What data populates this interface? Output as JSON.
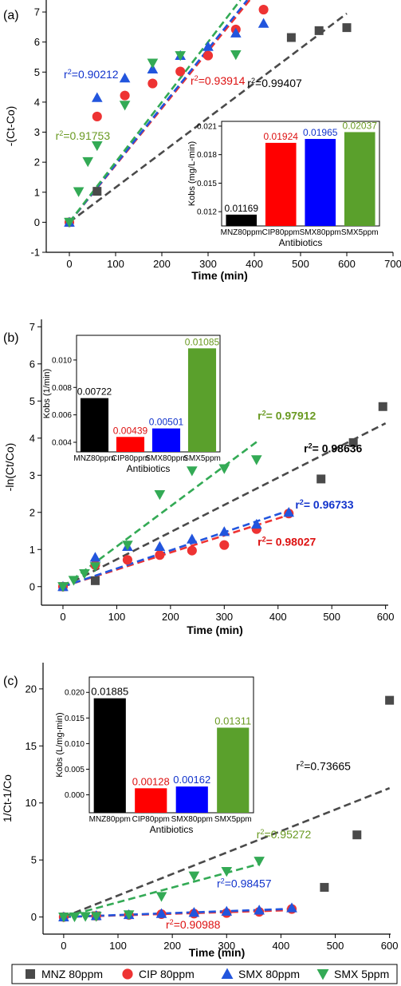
{
  "colors": {
    "MNZ": "#4a4a4a",
    "CIP": "#ee3333",
    "SMX80": "#2255dd",
    "SMX5": "#33aa55",
    "barMNZ": "#000000",
    "barCIP": "#ff0000",
    "barSMX80": "#0000ff",
    "barSMX5": "#5aa02c",
    "txtMNZ": "#000000",
    "txtCIP": "#dd1111",
    "txtSMX80": "#1133cc",
    "txtSMX5": "#6a9a22"
  },
  "legend": {
    "placement": "bottom",
    "items": [
      {
        "key": "MNZ",
        "label": "MNZ 80ppm",
        "marker": "square"
      },
      {
        "key": "CIP",
        "label": "CIP 80ppm",
        "marker": "circle"
      },
      {
        "key": "SMX80",
        "label": "SMX 80ppm",
        "marker": "triangle-up"
      },
      {
        "key": "SMX5",
        "label": "SMX 5ppm",
        "marker": "triangle-down"
      }
    ]
  },
  "chart_data": [
    {
      "type": "scatter",
      "panel_label": "(a)",
      "title": "",
      "xlabel": "Time (min)",
      "ylabel": "-(Ct-Co)",
      "xlim": [
        -50,
        700
      ],
      "ylim": [
        -1,
        7.4
      ],
      "xticks": [
        0,
        100,
        200,
        300,
        400,
        500,
        600,
        700
      ],
      "yticks": [
        -1,
        0,
        1,
        2,
        3,
        4,
        5,
        6,
        7
      ],
      "xticklabels": [
        "0",
        "100",
        "200",
        "300",
        "400",
        "500",
        "600",
        "700"
      ],
      "yticklabels": [
        "-1",
        "0",
        "1",
        "2",
        "3",
        "4",
        "5",
        "6",
        "7"
      ],
      "series": [
        {
          "key": "MNZ",
          "marker": "square",
          "x": [
            0,
            60,
            480,
            540,
            600
          ],
          "y": [
            0,
            1.03,
            6.15,
            6.38,
            6.48
          ],
          "fit": [
            [
              0,
              0
            ],
            [
              600,
              6.95
            ]
          ]
        },
        {
          "key": "CIP",
          "marker": "circle",
          "x": [
            0,
            60,
            120,
            180,
            240,
            300,
            360,
            420
          ],
          "y": [
            0,
            3.52,
            4.22,
            4.62,
            5.02,
            5.55,
            6.42,
            7.08
          ],
          "fit": [
            [
              0,
              0
            ],
            [
              390,
              7.4
            ]
          ]
        },
        {
          "key": "SMX80",
          "marker": "triangle-up",
          "x": [
            0,
            60,
            120,
            180,
            240,
            300,
            360,
            420
          ],
          "y": [
            0,
            4.15,
            4.8,
            5.1,
            5.55,
            5.85,
            6.3,
            6.62
          ],
          "fit": [
            [
              0,
              0
            ],
            [
              385,
              7.4
            ]
          ]
        },
        {
          "key": "SMX5",
          "marker": "triangle-down",
          "x": [
            0,
            20,
            40,
            60,
            120,
            180,
            240,
            360
          ],
          "y": [
            0,
            1.02,
            2.02,
            2.55,
            3.9,
            5.3,
            5.55,
            5.58
          ],
          "fit": [
            [
              0,
              0
            ],
            [
              370,
              7.4
            ]
          ]
        }
      ],
      "annotations": [
        {
          "key": "SMX80",
          "text": "r²=0.90212",
          "x": -12,
          "y": 4.8
        },
        {
          "key": "CIP",
          "text": "r²=0.93914",
          "x": 262,
          "y": 4.58
        },
        {
          "key": "MNZ",
          "text": "r²=0.99407",
          "x": 385,
          "y": 4.5
        },
        {
          "key": "SMX5",
          "text": "r²=0.91753",
          "x": -30,
          "y": 2.75
        }
      ],
      "inset": {
        "type": "bar",
        "xlabel": "Antibiotics",
        "ylabel": "Kobs (mg/L-min)",
        "ylim": [
          0.0105,
          0.0215
        ],
        "yticks": [
          0.012,
          0.015,
          0.018,
          0.021
        ],
        "yticklabels": [
          "0.012",
          "0.015",
          "0.018",
          "0.021"
        ],
        "categories": [
          "MNZ80ppm",
          "CIP80ppm",
          "SMX80ppm",
          "SMX5ppm"
        ],
        "values": [
          0.01169,
          0.01924,
          0.01965,
          0.02037
        ],
        "value_labels": [
          "0.01169",
          "0.01924",
          "0.01965",
          "0.02037"
        ]
      }
    },
    {
      "type": "scatter",
      "panel_label": "(b)",
      "title": "",
      "xlabel": "Time (min)",
      "ylabel": "-ln(Ct/Co)",
      "xlim": [
        -40,
        605
      ],
      "ylim": [
        -0.5,
        7.2
      ],
      "xticks": [
        0,
        100,
        200,
        300,
        400,
        500,
        600
      ],
      "yticks": [
        0,
        1,
        2,
        3,
        4,
        5,
        6,
        7
      ],
      "xticklabels": [
        "0",
        "100",
        "200",
        "300",
        "400",
        "500",
        "600"
      ],
      "yticklabels": [
        "0",
        "1",
        "2",
        "3",
        "4",
        "5",
        "6",
        "7"
      ],
      "series": [
        {
          "key": "MNZ",
          "marker": "square",
          "x": [
            0,
            60,
            480,
            540,
            595
          ],
          "y": [
            0,
            0.16,
            2.9,
            3.88,
            4.85
          ],
          "fit": [
            [
              0,
              0
            ],
            [
              600,
              4.4
            ]
          ]
        },
        {
          "key": "CIP",
          "marker": "circle",
          "x": [
            0,
            60,
            120,
            180,
            240,
            300,
            360,
            420
          ],
          "y": [
            0,
            0.58,
            0.72,
            0.85,
            0.97,
            1.12,
            1.55,
            1.97
          ],
          "fit": [
            [
              0,
              0
            ],
            [
              420,
              1.93
            ]
          ]
        },
        {
          "key": "SMX80",
          "marker": "triangle-up",
          "x": [
            0,
            60,
            120,
            180,
            240,
            300,
            360,
            420
          ],
          "y": [
            0,
            0.79,
            1.08,
            1.08,
            1.28,
            1.48,
            1.68,
            2.0
          ],
          "fit": [
            [
              0,
              0
            ],
            [
              420,
              2.05
            ]
          ]
        },
        {
          "key": "SMX5",
          "marker": "triangle-down",
          "x": [
            0,
            20,
            40,
            60,
            120,
            180,
            240,
            300,
            360
          ],
          "y": [
            0,
            0.17,
            0.35,
            0.54,
            1.12,
            2.48,
            3.12,
            3.18,
            3.42
          ],
          "fit": [
            [
              0,
              0
            ],
            [
              365,
              3.95
            ]
          ]
        }
      ],
      "annotations": [
        {
          "key": "SMX5",
          "text": "r²= 0.97912",
          "x": 362,
          "y": 4.5
        },
        {
          "key": "MNZ",
          "text": "r²= 0.98636",
          "x": 448,
          "y": 3.62
        },
        {
          "key": "SMX80",
          "text": "r²= 0.96733",
          "x": 432,
          "y": 2.1
        },
        {
          "key": "CIP",
          "text": "r²= 0.98027",
          "x": 362,
          "y": 1.1
        }
      ],
      "inset": {
        "type": "bar",
        "xlabel": "Antibiotics",
        "ylabel": "Kobs (1/min)",
        "ylim": [
          0.0033,
          0.0118
        ],
        "yticks": [
          0.004,
          0.006,
          0.008,
          0.01
        ],
        "yticklabels": [
          "0.004",
          "0.006",
          "0.008",
          "0.010"
        ],
        "categories": [
          "MNZ80ppm",
          "CIP80ppm",
          "SMX80ppm",
          "SMX5ppm"
        ],
        "values": [
          0.00722,
          0.00439,
          0.00501,
          0.01085
        ],
        "value_labels": [
          "0.00722",
          "0.00439",
          "0.00501",
          "0.01085"
        ]
      }
    },
    {
      "type": "scatter",
      "panel_label": "(c)",
      "title": "",
      "xlabel": "Time (min)",
      "ylabel": "1/Ct-1/Co",
      "xlim": [
        -38,
        602
      ],
      "ylim": [
        -1.5,
        22.3
      ],
      "xticks": [
        0,
        100,
        200,
        300,
        400,
        500,
        600
      ],
      "yticks": [
        0,
        5,
        10,
        15,
        20
      ],
      "xticklabels": [
        "0",
        "100",
        "200",
        "300",
        "400",
        "500",
        "600"
      ],
      "yticklabels": [
        "0",
        "5",
        "10",
        "15",
        "20"
      ],
      "series": [
        {
          "key": "MNZ",
          "marker": "square",
          "x": [
            0,
            60,
            480,
            540,
            600
          ],
          "y": [
            0,
            0.1,
            2.6,
            7.2,
            19.0
          ],
          "fit": [
            [
              0,
              0
            ],
            [
              600,
              11.3
            ]
          ]
        },
        {
          "key": "CIP",
          "marker": "circle",
          "x": [
            0,
            60,
            120,
            180,
            240,
            300,
            360,
            420
          ],
          "y": [
            0,
            0.1,
            0.18,
            0.25,
            0.3,
            0.35,
            0.45,
            0.7
          ],
          "fit": [
            [
              0,
              0
            ],
            [
              420,
              0.6
            ]
          ]
        },
        {
          "key": "SMX80",
          "marker": "triangle-up",
          "x": [
            0,
            60,
            120,
            180,
            240,
            300,
            360,
            420
          ],
          "y": [
            0,
            0.12,
            0.2,
            0.3,
            0.4,
            0.5,
            0.6,
            0.8
          ],
          "fit": [
            [
              0,
              0
            ],
            [
              420,
              0.72
            ]
          ]
        },
        {
          "key": "SMX5",
          "marker": "triangle-down",
          "x": [
            0,
            20,
            40,
            60,
            120,
            180,
            240,
            300,
            360
          ],
          "y": [
            0,
            0.02,
            0.05,
            0.05,
            0.2,
            1.8,
            3.6,
            4.0,
            4.9
          ],
          "fit": [
            [
              0,
              0
            ],
            [
              360,
              4.65
            ]
          ]
        }
      ],
      "annotations": [
        {
          "key": "MNZ",
          "text": "r²=0.73665",
          "x": 428,
          "y": 12.9
        },
        {
          "key": "SMX5",
          "text": "r²=0.95272",
          "x": 355,
          "y": 6.9
        },
        {
          "key": "SMX80",
          "text": "r²=0.98457",
          "x": 282,
          "y": 2.6
        },
        {
          "key": "CIP",
          "text": "r²=0.90988",
          "x": 188,
          "y": -1.0
        }
      ],
      "inset": {
        "type": "bar",
        "xlabel": "Antibiotics",
        "ylabel": "Kobs (L/mg-min)",
        "ylim": [
          -0.0035,
          0.023
        ],
        "yticks": [
          0.0,
          0.005,
          0.01,
          0.015,
          0.02
        ],
        "yticklabels": [
          "0.000",
          "0.005",
          "0.010",
          "0.015",
          "0.020"
        ],
        "categories": [
          "MNZ80ppm",
          "CIP80ppm",
          "SMX80ppm",
          "SMX5ppm"
        ],
        "values": [
          0.01885,
          0.00128,
          0.00162,
          0.01311
        ],
        "value_labels": [
          "0.01885",
          "0.00128",
          "0.00162",
          "0.01311"
        ]
      }
    }
  ]
}
